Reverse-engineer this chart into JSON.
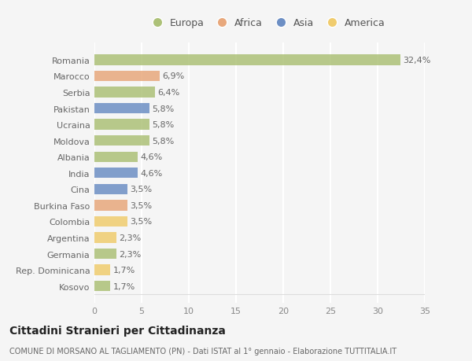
{
  "categories": [
    "Romania",
    "Marocco",
    "Serbia",
    "Pakistan",
    "Ucraina",
    "Moldova",
    "Albania",
    "India",
    "Cina",
    "Burkina Faso",
    "Colombia",
    "Argentina",
    "Germania",
    "Rep. Dominicana",
    "Kosovo"
  ],
  "values": [
    32.4,
    6.9,
    6.4,
    5.8,
    5.8,
    5.8,
    4.6,
    4.6,
    3.5,
    3.5,
    3.5,
    2.3,
    2.3,
    1.7,
    1.7
  ],
  "labels": [
    "32,4%",
    "6,9%",
    "6,4%",
    "5,8%",
    "5,8%",
    "5,8%",
    "4,6%",
    "4,6%",
    "3,5%",
    "3,5%",
    "3,5%",
    "2,3%",
    "2,3%",
    "1,7%",
    "1,7%"
  ],
  "colors": [
    "#adc178",
    "#e8a87c",
    "#adc178",
    "#6d8fc4",
    "#adc178",
    "#adc178",
    "#adc178",
    "#6d8fc4",
    "#6d8fc4",
    "#e8a87c",
    "#f0cc6e",
    "#f0cc6e",
    "#adc178",
    "#f0cc6e",
    "#adc178"
  ],
  "legend_labels": [
    "Europa",
    "Africa",
    "Asia",
    "America"
  ],
  "legend_colors": [
    "#adc178",
    "#e8a87c",
    "#6d8fc4",
    "#f0cc6e"
  ],
  "xlim": [
    0,
    35
  ],
  "xticks": [
    0,
    5,
    10,
    15,
    20,
    25,
    30,
    35
  ],
  "title": "Cittadini Stranieri per Cittadinanza",
  "subtitle": "COMUNE DI MORSANO AL TAGLIAMENTO (PN) - Dati ISTAT al 1° gennaio - Elaborazione TUTTITALIA.IT",
  "bg_color": "#f5f5f5",
  "bar_height": 0.65,
  "grid_color": "#ffffff",
  "label_fontsize": 8,
  "tick_fontsize": 8,
  "title_fontsize": 10,
  "subtitle_fontsize": 7
}
